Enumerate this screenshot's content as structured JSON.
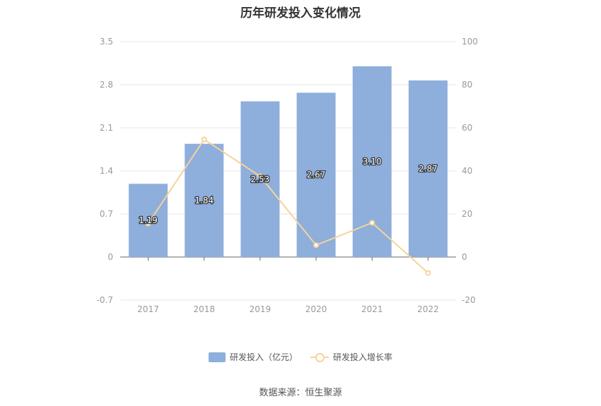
{
  "chart_data": {
    "type": "bar",
    "title": "历年研发投入变化情况",
    "categories": [
      "2017",
      "2018",
      "2019",
      "2020",
      "2021",
      "2022"
    ],
    "series": [
      {
        "name": "研发投入（亿元）",
        "type": "bar",
        "axis": "left",
        "values": [
          1.19,
          1.84,
          2.53,
          2.67,
          3.1,
          2.87
        ],
        "color": "#8eaedc"
      },
      {
        "name": "研发投入增长率",
        "type": "line",
        "axis": "right",
        "values": [
          15.5,
          54.6,
          37.5,
          5.5,
          15.9,
          -7.4
        ],
        "color": "#f5d39a"
      }
    ],
    "data_labels": [
      "1.19",
      "1.84",
      "2.53",
      "2.67",
      "3.10",
      "2.87"
    ],
    "y_left": {
      "ticks": [
        "3.5",
        "2.8",
        "2.1",
        "1.4",
        "0.7",
        "0",
        "-0.7"
      ],
      "ylim": [
        -0.7,
        3.5
      ]
    },
    "y_right": {
      "ticks": [
        "100",
        "80",
        "60",
        "40",
        "20",
        "0",
        "-20"
      ],
      "ylim": [
        -20,
        100
      ]
    },
    "grid": true,
    "legend": "bottom",
    "source": "数据来源：恒生聚源"
  }
}
